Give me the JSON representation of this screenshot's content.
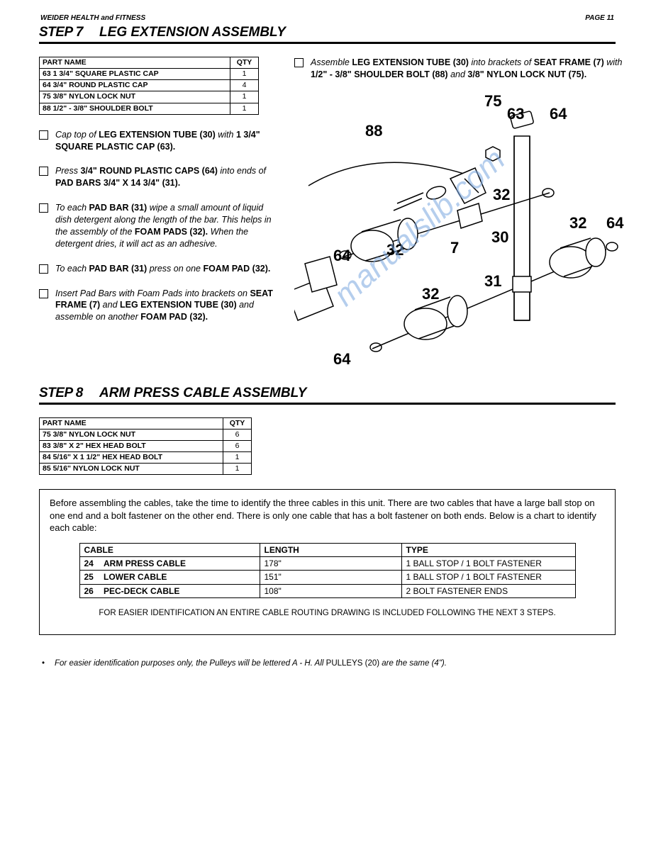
{
  "header": {
    "brand": "WEIDER HEALTH and FITNESS",
    "page": "PAGE 11"
  },
  "step7": {
    "num": "STEP 7",
    "title": "LEG EXTENSION ASSEMBLY",
    "parts_header": {
      "name": "PART NAME",
      "qty": "QTY"
    },
    "parts": [
      {
        "name": "63  1 3/4\" SQUARE PLASTIC CAP",
        "qty": "1"
      },
      {
        "name": "64  3/4\" ROUND PLASTIC CAP",
        "qty": "4"
      },
      {
        "name": "75  3/8\" NYLON LOCK NUT",
        "qty": "1"
      },
      {
        "name": "88  1/2\" - 3/8\" SHOULDER BOLT",
        "qty": "1"
      }
    ],
    "right_instruction": "Assemble <b>LEG EXTENSION TUBE (30)</b> into brackets of <b>SEAT FRAME (7)</b> with <b>1/2\" - 3/8\" SHOULDER BOLT (88)</b> and <b>3/8\" NYLON LOCK NUT (75).</b>",
    "instructions": [
      "Cap top of <b>LEG EXTENSION TUBE (30)</b> with <b>1 3/4\" SQUARE PLASTIC CAP (63).</b>",
      "Press <b>3/4\" ROUND PLASTIC CAPS (64)</b> into ends of <b>PAD BARS 3/4\" X 14 3/4\" (31).</b>",
      "To each <b>PAD BAR (31)</b> wipe a small amount of liquid dish detergent along the length of the bar. This helps in the assembly of the <b>FOAM PADS (32).</b> When the detergent dries, it will act as an adhesive.",
      "To each <b>PAD BAR (31)</b> press on one <b>FOAM PAD (32).</b>",
      "Insert Pad Bars with Foam Pads into brackets on <b>SEAT FRAME (7)</b> and <b>LEG EXTENSION TUBE (30)</b> and assemble on another <b>FOAM PAD (32).</b>"
    ],
    "callouts": {
      "75": "75",
      "63": "63",
      "64a": "64",
      "88": "88",
      "32a": "32",
      "32b": "32",
      "32c": "32",
      "32d": "32",
      "7": "7",
      "30": "30",
      "31": "31",
      "64b": "64",
      "64c": "64",
      "64d": "64"
    },
    "watermark": "manualslib.com"
  },
  "step8": {
    "num": "STEP 8",
    "title": "ARM PRESS CABLE ASSEMBLY",
    "parts_header": {
      "name": "PART NAME",
      "qty": "QTY"
    },
    "parts": [
      {
        "name": "75  3/8\" NYLON LOCK NUT",
        "qty": "6"
      },
      {
        "name": "83  3/8\" X 2\" HEX HEAD BOLT",
        "qty": "6"
      },
      {
        "name": "84  5/16\" X 1 1/2\" HEX HEAD BOLT",
        "qty": "1"
      },
      {
        "name": "85  5/16\" NYLON LOCK NUT",
        "qty": "1"
      }
    ],
    "info_text": "Before assembling the cables, take the time to identify the three cables in this unit. There are two cables that have a large ball stop on one end and a bolt fastener on the other end. There is only one cable that has a bolt fastener on both ends. Below is a chart to identify each cable:",
    "cable_header": {
      "cable": "CABLE",
      "length": "LENGTH",
      "type": "TYPE"
    },
    "cables": [
      {
        "num": "24",
        "name": "ARM PRESS CABLE",
        "length": "178\"",
        "type": "1 BALL STOP / 1 BOLT FASTENER"
      },
      {
        "num": "25",
        "name": "LOWER CABLE",
        "length": "151\"",
        "type": "1 BALL STOP / 1 BOLT FASTENER"
      },
      {
        "num": "26",
        "name": "PEC-DECK CABLE",
        "length": "108\"",
        "type": "2 BOLT FASTENER ENDS"
      }
    ],
    "note": "FOR EASIER IDENTIFICATION AN ENTIRE CABLE ROUTING DRAWING IS INCLUDED FOLLOWING THE NEXT 3 STEPS."
  },
  "footnote": "For easier identification purposes only, the Pulleys will be lettered A - H. All <span style='font-style:normal'>PULLEYS (20)</span> are the same (4\")."
}
